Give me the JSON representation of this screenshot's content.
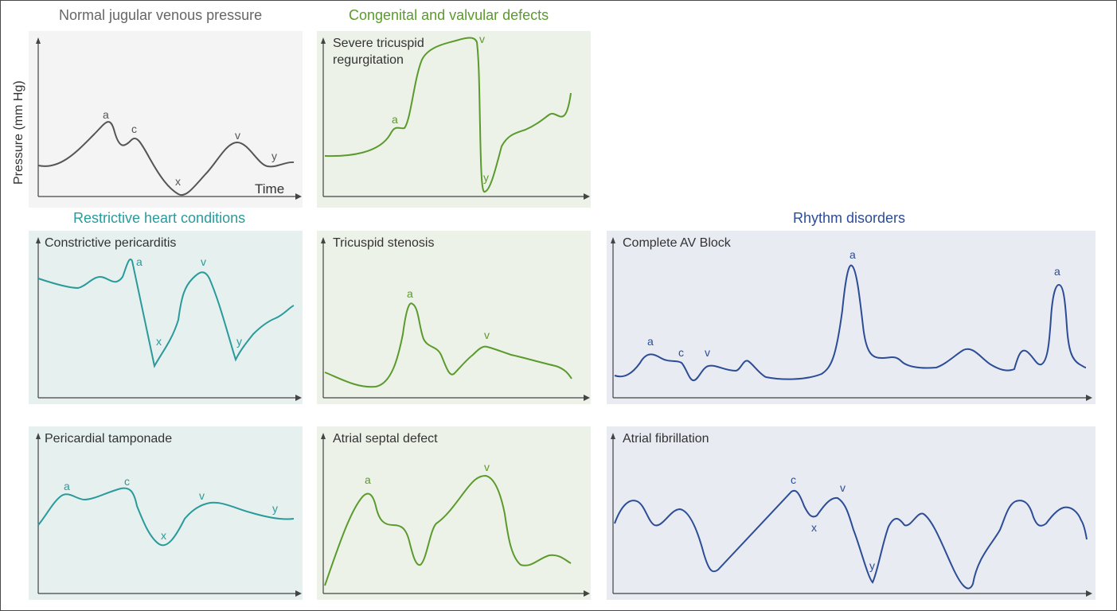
{
  "colors": {
    "gray": "#555555",
    "green": "#5b9a2c",
    "teal": "#2a9a9a",
    "blue": "#2c4d96",
    "bg_gray": "#f4f4f4",
    "bg_green": "#edf2e8",
    "bg_teal": "#e6f0ef",
    "bg_blue": "#e8ebf2",
    "axis": "#444444"
  },
  "sections": {
    "normal": "Normal jugular venous pressure",
    "congenital": "Congenital and valvular defects",
    "restrictive": "Restrictive heart conditions",
    "rhythm": "Rhythm disorders"
  },
  "axes": {
    "ylabel": "Pressure (mm Hg)",
    "xlabel": "Time"
  },
  "panels": {
    "normal": {
      "title": "",
      "labels": [
        "a",
        "c",
        "x",
        "v",
        "y"
      ]
    },
    "tricuspid_regurgitation": {
      "title": "Severe tricuspid\nregurgitation",
      "labels": [
        "a",
        "v",
        "y"
      ]
    },
    "constrictive_pericarditis": {
      "title": "Constrictive pericarditis",
      "labels": [
        "a",
        "x",
        "v",
        "y"
      ]
    },
    "tricuspid_stenosis": {
      "title": "Tricuspid stenosis",
      "labels": [
        "a",
        "v"
      ]
    },
    "complete_av_block": {
      "title": "Complete AV Block",
      "labels": [
        "a",
        "c",
        "v",
        "a",
        "a"
      ]
    },
    "pericardial_tamponade": {
      "title": "Pericardial tamponade",
      "labels": [
        "a",
        "c",
        "x",
        "v",
        "y"
      ]
    },
    "atrial_septal_defect": {
      "title": "Atrial septal defect",
      "labels": [
        "a",
        "v"
      ]
    },
    "atrial_fibrillation": {
      "title": "Atrial fibrillation",
      "labels": [
        "c",
        "x",
        "v",
        "y"
      ]
    }
  }
}
